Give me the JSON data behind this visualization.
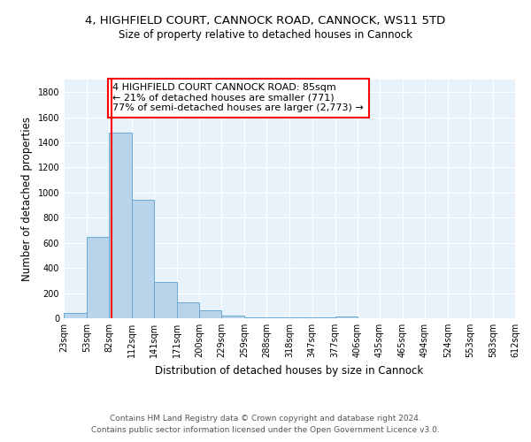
{
  "title_line1": "4, HIGHFIELD COURT, CANNOCK ROAD, CANNOCK, WS11 5TD",
  "title_line2": "Size of property relative to detached houses in Cannock",
  "xlabel": "Distribution of detached houses by size in Cannock",
  "ylabel": "Number of detached properties",
  "bar_color": "#b8d4ea",
  "bar_edge_color": "#6aaad4",
  "bg_color": "#e8f2fb",
  "grid_color": "#ffffff",
  "annotation_text": "4 HIGHFIELD COURT CANNOCK ROAD: 85sqm\n← 21% of detached houses are smaller (771)\n77% of semi-detached houses are larger (2,773) →",
  "red_line_x": 85,
  "bin_edges": [
    23,
    53,
    82,
    112,
    141,
    171,
    200,
    229,
    259,
    288,
    318,
    347,
    377,
    406,
    435,
    465,
    494,
    524,
    553,
    583,
    612
  ],
  "counts": [
    40,
    650,
    1480,
    940,
    290,
    130,
    65,
    20,
    10,
    5,
    5,
    5,
    15,
    0,
    0,
    0,
    0,
    0,
    0,
    0
  ],
  "ylim": [
    0,
    1900
  ],
  "yticks": [
    0,
    200,
    400,
    600,
    800,
    1000,
    1200,
    1400,
    1600,
    1800
  ],
  "footer_line1": "Contains HM Land Registry data © Crown copyright and database right 2024.",
  "footer_line2": "Contains public sector information licensed under the Open Government Licence v3.0.",
  "fig_bg_color": "#ffffff",
  "title_fontsize": 9.5,
  "subtitle_fontsize": 8.5,
  "axis_label_fontsize": 8.5,
  "tick_fontsize": 7,
  "annotation_fontsize": 8,
  "footer_fontsize": 6.5
}
